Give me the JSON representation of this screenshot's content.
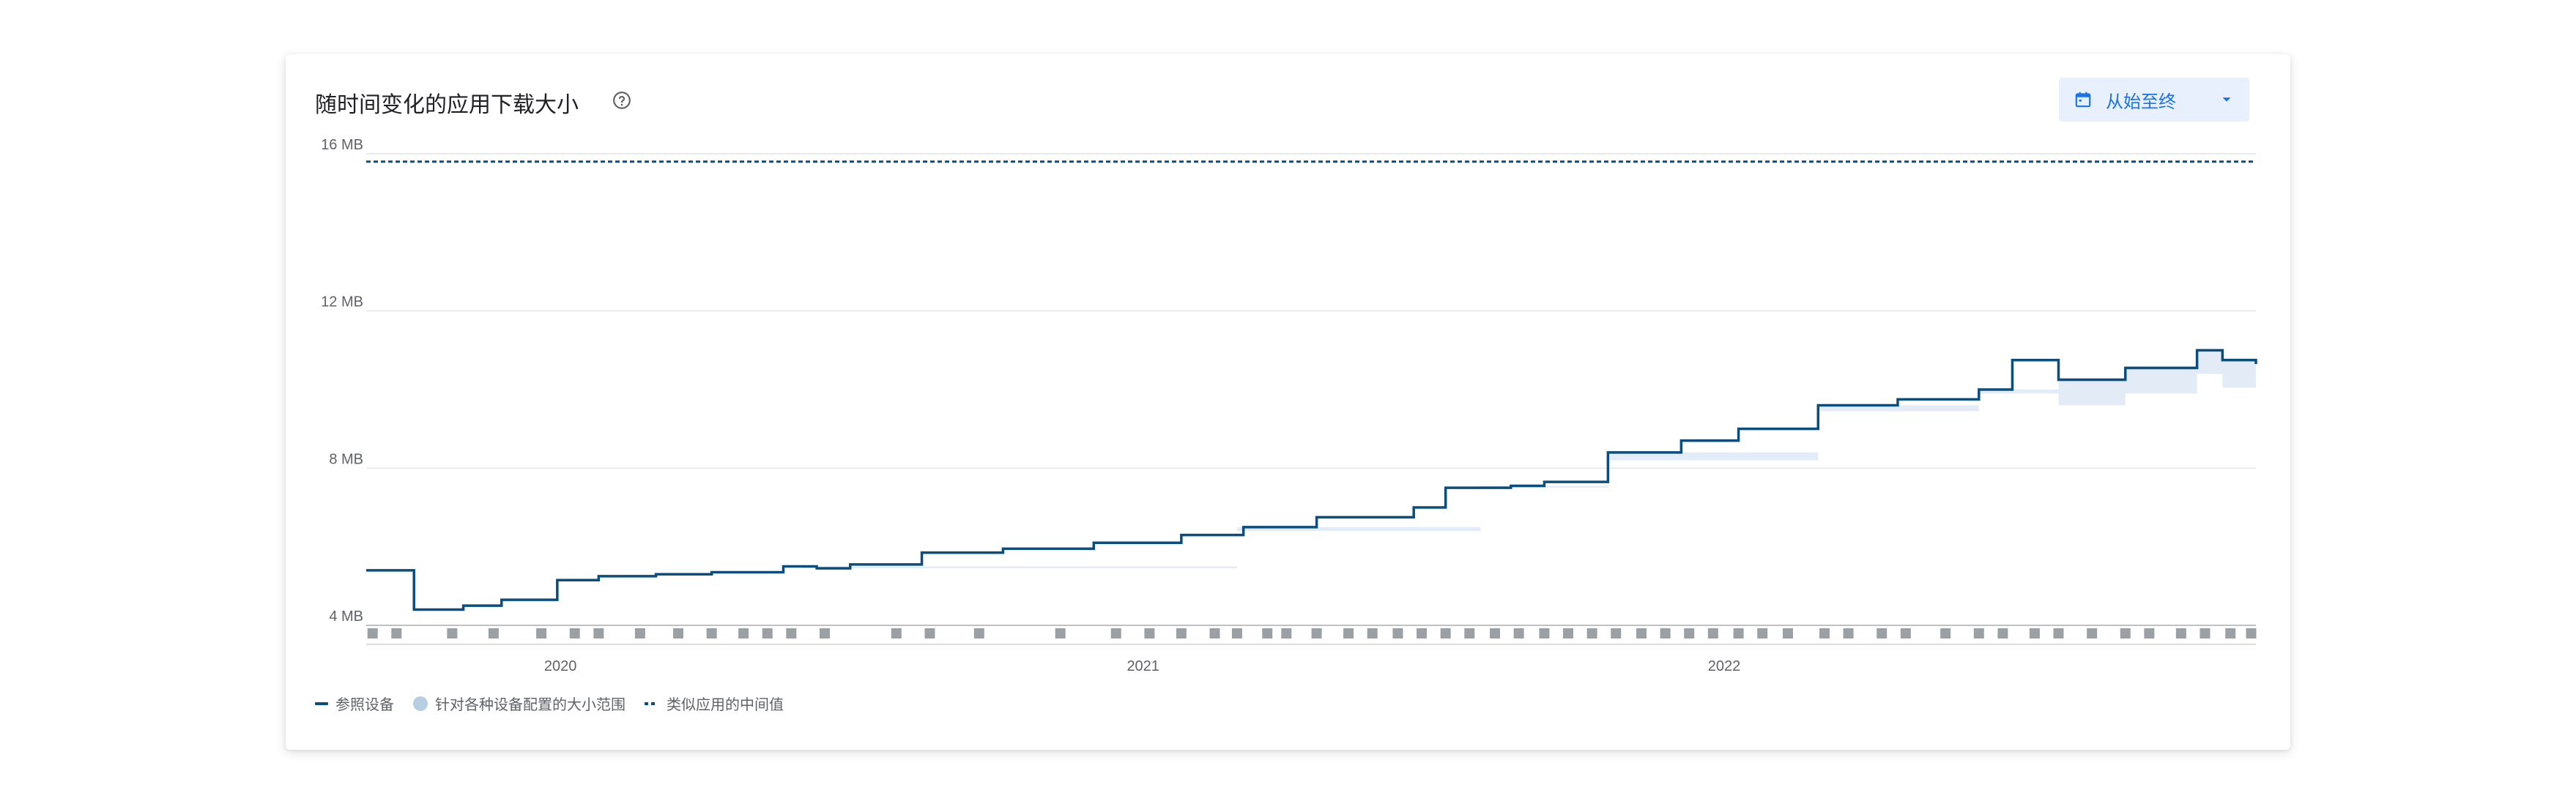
{
  "card": {
    "title": "随时间变化的应用下载大小",
    "range_button_label": "从始至终"
  },
  "icons": {
    "help": "help-circle-icon",
    "calendar": "calendar-icon",
    "dropdown": "arrow-drop-down-icon"
  },
  "colors": {
    "reference_line": "#0b4e7e",
    "range_fill": "#e3ecf6",
    "median_line": "#0b4e7e",
    "accent": "#1a73e8",
    "button_bg": "#e8f0fe"
  },
  "legend": {
    "reference": "参照设备",
    "range": "针对各种设备配置的大小范围",
    "median": "类似应用的中间值"
  },
  "chart_data": {
    "type": "line",
    "title": "随时间变化的应用下载大小",
    "xlabel": "",
    "ylabel": "",
    "x_range": [
      "2019-09-01",
      "2022-12-01"
    ],
    "ylim": [
      4,
      16
    ],
    "y_ticks": [
      {
        "value": 4,
        "label": "4 MB"
      },
      {
        "value": 8,
        "label": "8 MB"
      },
      {
        "value": 12,
        "label": "12 MB"
      },
      {
        "value": 16,
        "label": "16 MB"
      }
    ],
    "x_ticks": [
      {
        "value": "2020-01-01",
        "label": "2020"
      },
      {
        "value": "2021-01-01",
        "label": "2021"
      },
      {
        "value": "2022-01-01",
        "label": "2022"
      }
    ],
    "grid": true,
    "legend_position": "bottom-left",
    "series": [
      {
        "name": "参照设备",
        "style": "step-line",
        "points": [
          [
            "2019-09-01",
            5.4
          ],
          [
            "2019-10-01",
            4.4
          ],
          [
            "2019-11-01",
            4.5
          ],
          [
            "2019-11-25",
            4.65
          ],
          [
            "2019-12-30",
            5.15
          ],
          [
            "2020-01-25",
            5.25
          ],
          [
            "2020-03-01",
            5.3
          ],
          [
            "2020-04-05",
            5.35
          ],
          [
            "2020-05-20",
            5.5
          ],
          [
            "2020-06-10",
            5.45
          ],
          [
            "2020-07-01",
            5.55
          ],
          [
            "2020-08-15",
            5.85
          ],
          [
            "2020-10-05",
            5.95
          ],
          [
            "2020-12-01",
            6.1
          ],
          [
            "2021-01-25",
            6.3
          ],
          [
            "2021-03-05",
            6.5
          ],
          [
            "2021-04-20",
            6.75
          ],
          [
            "2021-06-20",
            7.0
          ],
          [
            "2021-07-10",
            7.5
          ],
          [
            "2021-08-20",
            7.55
          ],
          [
            "2021-09-10",
            7.65
          ],
          [
            "2021-10-20",
            8.4
          ],
          [
            "2021-12-05",
            8.7
          ],
          [
            "2022-01-10",
            9.0
          ],
          [
            "2022-03-01",
            9.6
          ],
          [
            "2022-04-20",
            9.75
          ],
          [
            "2022-06-10",
            10.0
          ],
          [
            "2022-07-01",
            10.75
          ],
          [
            "2022-07-30",
            10.25
          ],
          [
            "2022-09-10",
            10.55
          ],
          [
            "2022-10-25",
            11.0
          ],
          [
            "2022-11-10",
            10.75
          ],
          [
            "2022-12-01",
            10.65
          ]
        ]
      },
      {
        "name": "针对各种设备配置的大小范围",
        "style": "band",
        "points": [
          [
            "2019-09-01",
            5.4,
            5.4
          ],
          [
            "2020-06-01",
            5.45,
            5.5
          ],
          [
            "2021-03-01",
            6.4,
            6.5
          ],
          [
            "2021-08-01",
            7.5,
            7.55
          ],
          [
            "2021-10-20",
            8.2,
            8.4
          ],
          [
            "2022-03-01",
            9.45,
            9.6
          ],
          [
            "2022-06-10",
            9.9,
            10.0
          ],
          [
            "2022-07-30",
            9.6,
            10.3
          ],
          [
            "2022-09-10",
            9.9,
            10.6
          ],
          [
            "2022-10-25",
            10.4,
            11.0
          ],
          [
            "2022-11-10",
            10.05,
            10.8
          ],
          [
            "2022-12-01",
            9.95,
            10.7
          ]
        ]
      },
      {
        "name": "类似应用的中间值",
        "style": "dashed",
        "points": [
          [
            "2019-09-01",
            15.8
          ],
          [
            "2022-12-01",
            15.8
          ]
        ]
      }
    ],
    "release_markers": [
      "2019-09-05",
      "2019-09-20",
      "2019-10-25",
      "2019-11-20",
      "2019-12-20",
      "2020-01-10",
      "2020-01-25",
      "2020-02-20",
      "2020-03-15",
      "2020-04-05",
      "2020-04-25",
      "2020-05-10",
      "2020-05-25",
      "2020-06-15",
      "2020-07-30",
      "2020-08-20",
      "2020-09-20",
      "2020-11-10",
      "2020-12-15",
      "2021-01-05",
      "2021-01-25",
      "2021-02-15",
      "2021-03-01",
      "2021-03-20",
      "2021-04-01",
      "2021-04-20",
      "2021-05-10",
      "2021-05-25",
      "2021-06-10",
      "2021-06-25",
      "2021-07-10",
      "2021-07-25",
      "2021-08-10",
      "2021-08-25",
      "2021-09-10",
      "2021-09-25",
      "2021-10-10",
      "2021-10-25",
      "2021-11-10",
      "2021-11-25",
      "2021-12-10",
      "2021-12-25",
      "2022-01-10",
      "2022-01-25",
      "2022-02-10",
      "2022-03-05",
      "2022-03-20",
      "2022-04-10",
      "2022-04-25",
      "2022-05-20",
      "2022-06-10",
      "2022-06-25",
      "2022-07-15",
      "2022-07-30",
      "2022-08-20",
      "2022-09-10",
      "2022-09-25",
      "2022-10-15",
      "2022-10-30",
      "2022-11-15",
      "2022-11-28"
    ]
  }
}
